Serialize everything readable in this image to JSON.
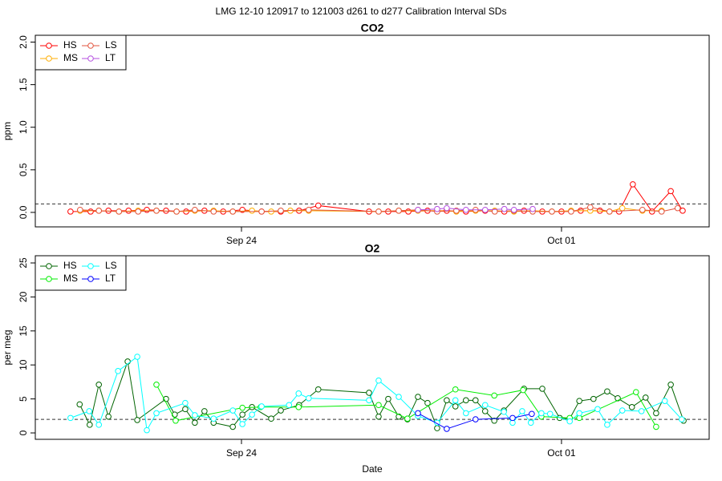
{
  "title": "LMG   12-10    120917 to 121003    d261 to d277   Calibration Interval SDs",
  "chart_data": [
    {
      "type": "line",
      "title": "CO2",
      "y_label": "ppm",
      "xlim": [
        263.49,
        278.23
      ],
      "xticks": [
        {
          "value": 268,
          "label": "Sep 24"
        },
        {
          "value": 275,
          "label": "Oct 01"
        }
      ],
      "ylim": [
        -0.17,
        2.08
      ],
      "yticks": [
        {
          "value": 0,
          "label": "0.0"
        },
        0.5,
        {
          "value": 1,
          "label": "1.0"
        },
        1.5,
        {
          "value": 2,
          "label": "2.0"
        }
      ],
      "reference_line": 0.1,
      "legend": "top-left",
      "series": [
        {
          "name": "HS",
          "color": "#ff0000",
          "x": [
            264.26,
            264.7,
            265.09,
            265.53,
            265.93,
            266.35,
            266.79,
            267.19,
            267.6,
            268.02,
            268.44,
            268.86,
            269.26,
            269.68,
            270.79,
            271.21,
            271.65,
            272.07,
            272.49,
            272.91,
            273.33,
            273.75,
            274.18,
            274.58,
            275.0,
            275.42,
            275.84,
            276.26,
            276.56,
            276.98,
            277.39,
            277.65
          ],
          "values": [
            0.01,
            0.01,
            0.02,
            0.02,
            0.03,
            0.02,
            0.01,
            0.02,
            0.01,
            0.03,
            0.01,
            0.01,
            0.02,
            0.08,
            0.01,
            0.01,
            0.01,
            0.02,
            0.02,
            0.01,
            0.02,
            0.01,
            0.02,
            0.01,
            0.01,
            0.02,
            0.02,
            0.01,
            0.33,
            0.01,
            0.25,
            0.02
          ]
        },
        {
          "name": "MS",
          "color": "#ffae00",
          "x": [
            264.47,
            264.88,
            265.32,
            265.74,
            266.14,
            266.58,
            266.98,
            267.39,
            267.81,
            268.23,
            268.65,
            269.07,
            269.47,
            271.0,
            271.44,
            271.86,
            272.28,
            272.7,
            273.12,
            273.54,
            273.96,
            274.37,
            274.79,
            275.21,
            275.63,
            276.05,
            276.33,
            276.77,
            277.19
          ],
          "values": [
            0.02,
            0.02,
            0.01,
            0.02,
            0.02,
            0.01,
            0.02,
            0.02,
            0.01,
            0.02,
            0.01,
            0.02,
            0.02,
            0.01,
            0.02,
            0.02,
            0.02,
            0.01,
            0.02,
            0.02,
            0.01,
            0.02,
            0.01,
            0.02,
            0.02,
            0.01,
            0.05,
            0.02,
            0.02
          ]
        },
        {
          "name": "LS",
          "color": "#e2533c",
          "x": [
            264.47,
            264.88,
            265.32,
            265.74,
            266.14,
            266.58,
            266.98,
            267.39,
            267.81,
            268.44,
            268.86,
            269.47,
            271.0,
            271.44,
            271.86,
            272.28,
            272.7,
            273.12,
            273.54,
            273.96,
            274.37,
            274.79,
            275.21,
            275.63,
            276.05,
            276.77,
            277.19,
            277.54
          ],
          "values": [
            0.03,
            0.02,
            0.01,
            0.01,
            0.02,
            0.01,
            0.03,
            0.01,
            0.01,
            0.01,
            0.02,
            0.03,
            0.01,
            0.02,
            0.03,
            0.01,
            0.02,
            0.03,
            0.01,
            0.02,
            0.01,
            0.01,
            0.01,
            0.06,
            0.01,
            0.03,
            0.01,
            0.05
          ]
        },
        {
          "name": "LT",
          "color": "#b44ee0",
          "x": [
            271.86,
            272.28,
            272.49,
            272.91,
            273.33,
            273.75,
            273.96,
            274.37
          ],
          "values": [
            0.03,
            0.04,
            0.05,
            0.03,
            0.03,
            0.04,
            0.03,
            0.04
          ]
        }
      ]
    },
    {
      "type": "line",
      "title": "O2",
      "y_label": "per meg",
      "x_label": "Date",
      "xlim": [
        263.49,
        278.23
      ],
      "xticks": [
        {
          "value": 268,
          "label": "Sep 24"
        },
        {
          "value": 275,
          "label": "Oct 01"
        }
      ],
      "ylim": [
        -0.94,
        26.06
      ],
      "yticks": [
        0,
        5,
        10,
        15,
        20,
        25
      ],
      "reference_line": 2,
      "legend": "top-left",
      "series": [
        {
          "name": "HS",
          "color": "#006400",
          "x": [
            264.46,
            264.68,
            264.88,
            265.09,
            265.51,
            265.72,
            266.35,
            266.54,
            266.77,
            266.98,
            267.19,
            267.39,
            267.81,
            268.02,
            268.23,
            268.65,
            268.86,
            269.26,
            269.68,
            270.79,
            271.0,
            271.21,
            271.44,
            271.63,
            271.86,
            272.07,
            272.28,
            272.49,
            272.68,
            272.91,
            273.12,
            273.33,
            273.53,
            273.74,
            274.18,
            274.58,
            274.96,
            275.18,
            275.39,
            275.7,
            276.0,
            276.23,
            276.54,
            276.84,
            277.07,
            277.39,
            277.67
          ],
          "values": [
            4.2,
            1.2,
            7.1,
            2.4,
            10.5,
            1.9,
            5.0,
            2.7,
            3.5,
            1.5,
            3.2,
            1.5,
            0.9,
            2.7,
            3.8,
            2.1,
            3.3,
            4.1,
            6.4,
            5.9,
            2.4,
            5.0,
            2.4,
            2.0,
            5.3,
            4.4,
            0.7,
            4.8,
            3.9,
            4.8,
            4.8,
            3.2,
            1.8,
            3.3,
            6.5,
            6.5,
            2.2,
            2.1,
            4.7,
            5.0,
            6.1,
            5.1,
            3.8,
            5.2,
            2.9,
            7.1,
            1.8
          ]
        },
        {
          "name": "MS",
          "color": "#00ee00",
          "x": [
            266.14,
            266.56,
            268.02,
            268.42,
            269.25,
            271.0,
            271.63,
            272.68,
            273.53,
            274.16,
            274.56,
            275.18,
            275.39,
            276.63,
            277.07
          ],
          "values": [
            7.1,
            1.8,
            3.7,
            3.8,
            3.8,
            4.1,
            2.1,
            6.4,
            5.5,
            6.3,
            2.4,
            2.2,
            2.2,
            6.0,
            0.9
          ]
        },
        {
          "name": "LS",
          "color": "#00ffff",
          "x": [
            264.26,
            264.67,
            264.88,
            265.3,
            265.72,
            265.93,
            266.14,
            266.77,
            266.98,
            267.39,
            267.81,
            268.02,
            268.23,
            268.44,
            269.04,
            269.25,
            269.47,
            270.79,
            271.0,
            271.44,
            271.86,
            272.28,
            272.68,
            272.91,
            273.33,
            273.74,
            273.93,
            274.14,
            274.33,
            274.56,
            274.75,
            275.18,
            275.39,
            275.79,
            276.0,
            276.33,
            276.75,
            277.26,
            277.63
          ],
          "values": [
            2.2,
            3.2,
            1.2,
            9.1,
            11.2,
            0.4,
            2.9,
            4.4,
            2.6,
            2.1,
            3.3,
            1.3,
            2.7,
            3.9,
            4.1,
            5.8,
            5.1,
            4.8,
            7.7,
            5.3,
            2.5,
            1.5,
            4.8,
            2.9,
            4.1,
            3.1,
            1.5,
            3.2,
            1.5,
            2.9,
            2.8,
            1.7,
            2.9,
            3.5,
            1.2,
            3.3,
            3.2,
            4.7,
            2.0
          ]
        },
        {
          "name": "LT",
          "color": "#0000ff",
          "x": [
            271.86,
            272.49,
            273.12,
            273.93,
            274.35
          ],
          "values": [
            2.9,
            0.6,
            2.0,
            2.2,
            2.8
          ]
        }
      ]
    }
  ]
}
